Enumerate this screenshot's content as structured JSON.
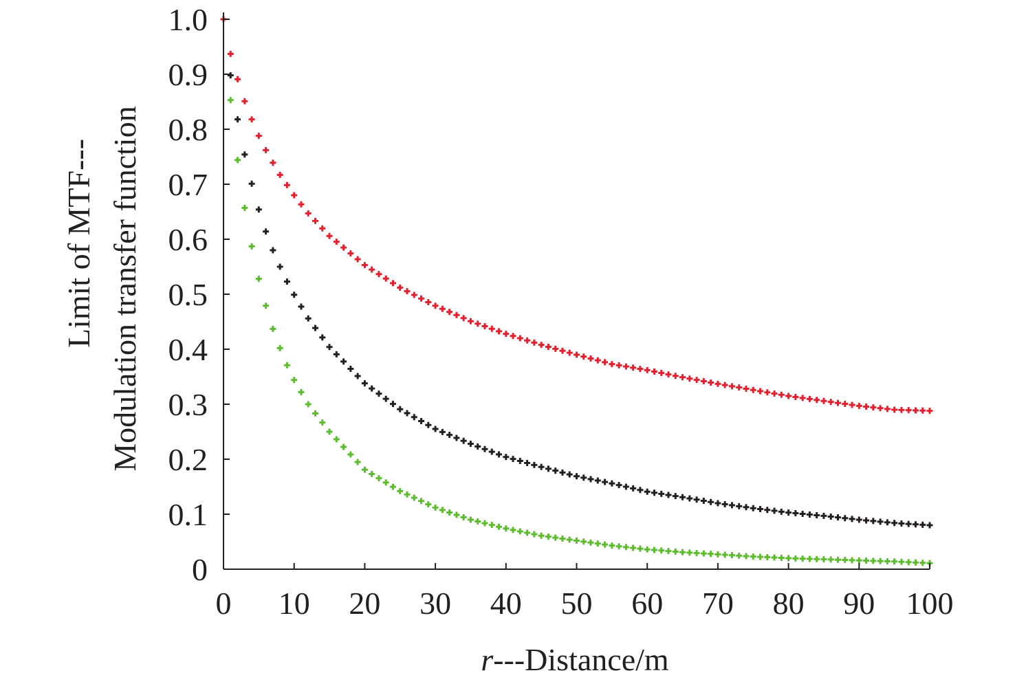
{
  "chart_data": {
    "type": "scatter",
    "title": "",
    "xlabel_var": "r",
    "xlabel_rest": "---Distance/m",
    "ylabel_line1": "Limit of MTF---",
    "ylabel_line2": "Modulation transfer function",
    "xlim": [
      0,
      100
    ],
    "ylim": [
      0,
      1.0
    ],
    "x_ticks": [
      0,
      10,
      20,
      30,
      40,
      50,
      60,
      70,
      80,
      90,
      100
    ],
    "x_tick_labels": [
      "0",
      "10",
      "20",
      "30",
      "40",
      "50",
      "60",
      "70",
      "80",
      "90",
      "100"
    ],
    "y_ticks": [
      0,
      0.1,
      0.2,
      0.3,
      0.4,
      0.5,
      0.6,
      0.7,
      0.8,
      0.9,
      1.0
    ],
    "y_tick_labels": [
      "0",
      "0.1",
      "0.2",
      "0.3",
      "0.4",
      "0.5",
      "0.6",
      "0.7",
      "0.8",
      "0.9",
      "1.0"
    ],
    "grid": false,
    "marker": "plus",
    "series": [
      {
        "color": "#e5202e",
        "x": [
          0,
          1,
          2,
          3,
          4,
          5,
          6,
          7,
          8,
          10,
          12,
          15,
          20,
          25,
          30,
          35,
          40,
          45,
          50,
          55,
          60,
          65,
          70,
          75,
          80,
          85,
          90,
          95,
          100
        ],
        "y": [
          1.0,
          0.937,
          0.891,
          0.851,
          0.818,
          0.788,
          0.762,
          0.739,
          0.717,
          0.68,
          0.647,
          0.606,
          0.553,
          0.512,
          0.479,
          0.451,
          0.428,
          0.408,
          0.39,
          0.373,
          0.362,
          0.349,
          0.337,
          0.326,
          0.315,
          0.306,
          0.297,
          0.29,
          0.288
        ]
      },
      {
        "color": "#231f20",
        "x": [
          1,
          2,
          3,
          4,
          5,
          6,
          7,
          8,
          9,
          10,
          12,
          15,
          20,
          25,
          30,
          35,
          40,
          45,
          50,
          55,
          60,
          65,
          70,
          75,
          80,
          85,
          90,
          95,
          100
        ],
        "y": [
          0.898,
          0.818,
          0.754,
          0.701,
          0.654,
          0.614,
          0.58,
          0.55,
          0.523,
          0.499,
          0.456,
          0.404,
          0.338,
          0.291,
          0.255,
          0.228,
          0.204,
          0.186,
          0.169,
          0.156,
          0.141,
          0.131,
          0.12,
          0.111,
          0.103,
          0.097,
          0.09,
          0.084,
          0.08
        ]
      },
      {
        "color": "#5dbb2e",
        "x": [
          1,
          2,
          3,
          4,
          5,
          6,
          7,
          8,
          9,
          10,
          12,
          15,
          20,
          25,
          30,
          35,
          40,
          45,
          50,
          55,
          60,
          65,
          70,
          75,
          80,
          85,
          90,
          95,
          100
        ],
        "y": [
          0.853,
          0.744,
          0.657,
          0.587,
          0.528,
          0.479,
          0.437,
          0.402,
          0.371,
          0.344,
          0.3,
          0.25,
          0.181,
          0.142,
          0.112,
          0.09,
          0.074,
          0.061,
          0.052,
          0.043,
          0.036,
          0.031,
          0.027,
          0.023,
          0.02,
          0.018,
          0.016,
          0.014,
          0.011
        ]
      }
    ]
  }
}
